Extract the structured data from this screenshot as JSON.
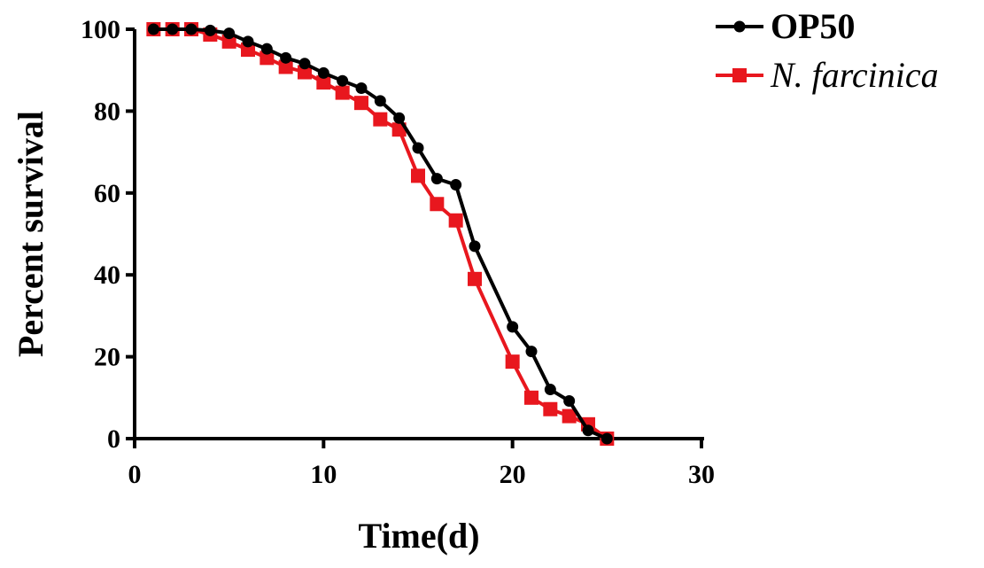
{
  "chart_data": {
    "type": "line",
    "title": "",
    "xlabel": "Time(d)",
    "ylabel": "Percent survival",
    "xlim": [
      0,
      30
    ],
    "ylim": [
      0,
      100
    ],
    "xticks": [
      "0",
      "10",
      "20",
      "30"
    ],
    "yticks": [
      "0",
      "20",
      "40",
      "60",
      "80",
      "100"
    ],
    "grid": false,
    "legend_position": "top-right",
    "series": [
      {
        "name": "OP50",
        "color": "#000000",
        "marker": "circle",
        "x": [
          1,
          2,
          3,
          4,
          5,
          6,
          7,
          8,
          9,
          10,
          11,
          12,
          13,
          14,
          15,
          16,
          17,
          18,
          20,
          21,
          22,
          23,
          24,
          25
        ],
        "y": [
          100,
          100,
          100,
          99.7,
          99,
          97,
          95.2,
          93,
          91.6,
          89.3,
          87.4,
          85.6,
          82.5,
          78.3,
          71,
          63.5,
          62,
          47,
          27.3,
          21.3,
          12,
          9.2,
          2,
          0
        ]
      },
      {
        "name": "N. farcinica",
        "color": "#e8171e",
        "marker": "square",
        "x": [
          1,
          2,
          3,
          4,
          5,
          6,
          7,
          8,
          9,
          10,
          11,
          12,
          13,
          14,
          15,
          16,
          17,
          18,
          20,
          21,
          22,
          23,
          24,
          25
        ],
        "y": [
          100,
          100,
          100,
          98.7,
          97,
          95,
          93,
          90.8,
          89.5,
          87,
          84.5,
          82,
          78,
          75.5,
          64.2,
          57.3,
          53.3,
          39,
          18.8,
          10,
          7.2,
          5.5,
          3.5,
          0
        ]
      }
    ]
  }
}
